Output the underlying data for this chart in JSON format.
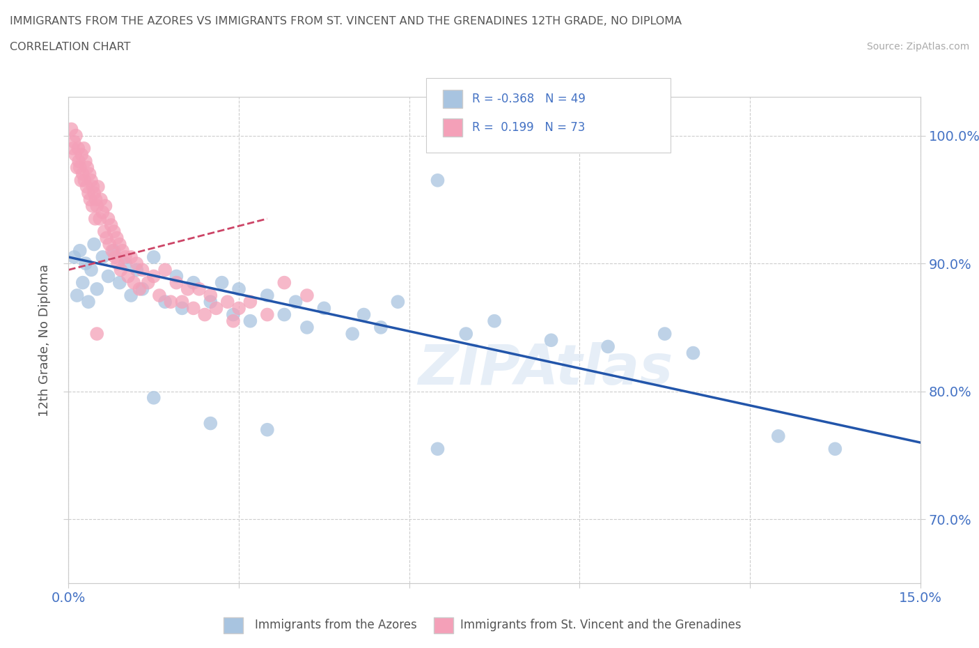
{
  "title_line1": "IMMIGRANTS FROM THE AZORES VS IMMIGRANTS FROM ST. VINCENT AND THE GRENADINES 12TH GRADE, NO DIPLOMA",
  "title_line2": "CORRELATION CHART",
  "source_text": "Source: ZipAtlas.com",
  "ylabel": "12th Grade, No Diploma",
  "xlim": [
    0.0,
    15.0
  ],
  "ylim": [
    65.0,
    103.0
  ],
  "azores_color": "#a8c4e0",
  "vincent_color": "#f4a0b8",
  "azores_line_color": "#2255aa",
  "vincent_line_color": "#cc4466",
  "R_azores": -0.368,
  "N_azores": 49,
  "R_vincent": 0.199,
  "N_vincent": 73,
  "legend_label_azores": "Immigrants from the Azores",
  "legend_label_vincent": "Immigrants from St. Vincent and the Grenadines",
  "watermark": "ZIPAtlas",
  "background_color": "#ffffff",
  "grid_color": "#cccccc",
  "azores_scatter": [
    [
      0.1,
      90.5
    ],
    [
      0.15,
      87.5
    ],
    [
      0.2,
      91.0
    ],
    [
      0.25,
      88.5
    ],
    [
      0.3,
      90.0
    ],
    [
      0.35,
      87.0
    ],
    [
      0.4,
      89.5
    ],
    [
      0.45,
      91.5
    ],
    [
      0.5,
      88.0
    ],
    [
      0.6,
      90.5
    ],
    [
      0.7,
      89.0
    ],
    [
      0.8,
      91.0
    ],
    [
      0.9,
      88.5
    ],
    [
      1.0,
      90.0
    ],
    [
      1.1,
      87.5
    ],
    [
      1.2,
      89.5
    ],
    [
      1.3,
      88.0
    ],
    [
      1.5,
      90.5
    ],
    [
      1.7,
      87.0
    ],
    [
      1.9,
      89.0
    ],
    [
      2.0,
      86.5
    ],
    [
      2.2,
      88.5
    ],
    [
      2.5,
      87.0
    ],
    [
      2.7,
      88.5
    ],
    [
      2.9,
      86.0
    ],
    [
      3.0,
      88.0
    ],
    [
      3.2,
      85.5
    ],
    [
      3.5,
      87.5
    ],
    [
      3.8,
      86.0
    ],
    [
      4.0,
      87.0
    ],
    [
      4.2,
      85.0
    ],
    [
      4.5,
      86.5
    ],
    [
      5.0,
      84.5
    ],
    [
      5.2,
      86.0
    ],
    [
      5.5,
      85.0
    ],
    [
      5.8,
      87.0
    ],
    [
      6.5,
      96.5
    ],
    [
      7.0,
      84.5
    ],
    [
      7.5,
      85.5
    ],
    [
      8.5,
      84.0
    ],
    [
      9.5,
      83.5
    ],
    [
      10.5,
      84.5
    ],
    [
      11.0,
      83.0
    ],
    [
      12.5,
      76.5
    ],
    [
      13.5,
      75.5
    ],
    [
      1.5,
      79.5
    ],
    [
      2.5,
      77.5
    ],
    [
      3.5,
      77.0
    ],
    [
      6.5,
      75.5
    ]
  ],
  "vincent_scatter": [
    [
      0.05,
      100.5
    ],
    [
      0.08,
      99.0
    ],
    [
      0.1,
      99.5
    ],
    [
      0.12,
      98.5
    ],
    [
      0.13,
      100.0
    ],
    [
      0.15,
      97.5
    ],
    [
      0.17,
      99.0
    ],
    [
      0.18,
      98.0
    ],
    [
      0.2,
      97.5
    ],
    [
      0.22,
      96.5
    ],
    [
      0.23,
      98.5
    ],
    [
      0.25,
      97.0
    ],
    [
      0.27,
      99.0
    ],
    [
      0.28,
      96.5
    ],
    [
      0.3,
      98.0
    ],
    [
      0.32,
      96.0
    ],
    [
      0.33,
      97.5
    ],
    [
      0.35,
      95.5
    ],
    [
      0.37,
      97.0
    ],
    [
      0.38,
      95.0
    ],
    [
      0.4,
      96.5
    ],
    [
      0.42,
      94.5
    ],
    [
      0.43,
      96.0
    ],
    [
      0.45,
      95.5
    ],
    [
      0.47,
      93.5
    ],
    [
      0.48,
      95.0
    ],
    [
      0.5,
      94.5
    ],
    [
      0.52,
      96.0
    ],
    [
      0.55,
      93.5
    ],
    [
      0.57,
      95.0
    ],
    [
      0.6,
      94.0
    ],
    [
      0.63,
      92.5
    ],
    [
      0.65,
      94.5
    ],
    [
      0.67,
      92.0
    ],
    [
      0.7,
      93.5
    ],
    [
      0.72,
      91.5
    ],
    [
      0.75,
      93.0
    ],
    [
      0.77,
      91.0
    ],
    [
      0.8,
      92.5
    ],
    [
      0.82,
      90.5
    ],
    [
      0.85,
      92.0
    ],
    [
      0.87,
      90.0
    ],
    [
      0.9,
      91.5
    ],
    [
      0.92,
      89.5
    ],
    [
      0.95,
      91.0
    ],
    [
      1.0,
      90.5
    ],
    [
      1.05,
      89.0
    ],
    [
      1.1,
      90.5
    ],
    [
      1.15,
      88.5
    ],
    [
      1.2,
      90.0
    ],
    [
      1.25,
      88.0
    ],
    [
      1.3,
      89.5
    ],
    [
      1.4,
      88.5
    ],
    [
      1.5,
      89.0
    ],
    [
      1.6,
      87.5
    ],
    [
      1.7,
      89.5
    ],
    [
      1.8,
      87.0
    ],
    [
      1.9,
      88.5
    ],
    [
      2.0,
      87.0
    ],
    [
      2.1,
      88.0
    ],
    [
      2.2,
      86.5
    ],
    [
      2.3,
      88.0
    ],
    [
      2.4,
      86.0
    ],
    [
      2.5,
      87.5
    ],
    [
      2.6,
      86.5
    ],
    [
      2.8,
      87.0
    ],
    [
      2.9,
      85.5
    ],
    [
      3.0,
      86.5
    ],
    [
      3.2,
      87.0
    ],
    [
      3.5,
      86.0
    ],
    [
      3.8,
      88.5
    ],
    [
      4.2,
      87.5
    ],
    [
      0.5,
      84.5
    ]
  ],
  "azores_trendline": [
    [
      0,
      90.5
    ],
    [
      15.0,
      76.0
    ]
  ],
  "vincent_trendline": [
    [
      0,
      89.5
    ],
    [
      3.5,
      93.5
    ]
  ]
}
